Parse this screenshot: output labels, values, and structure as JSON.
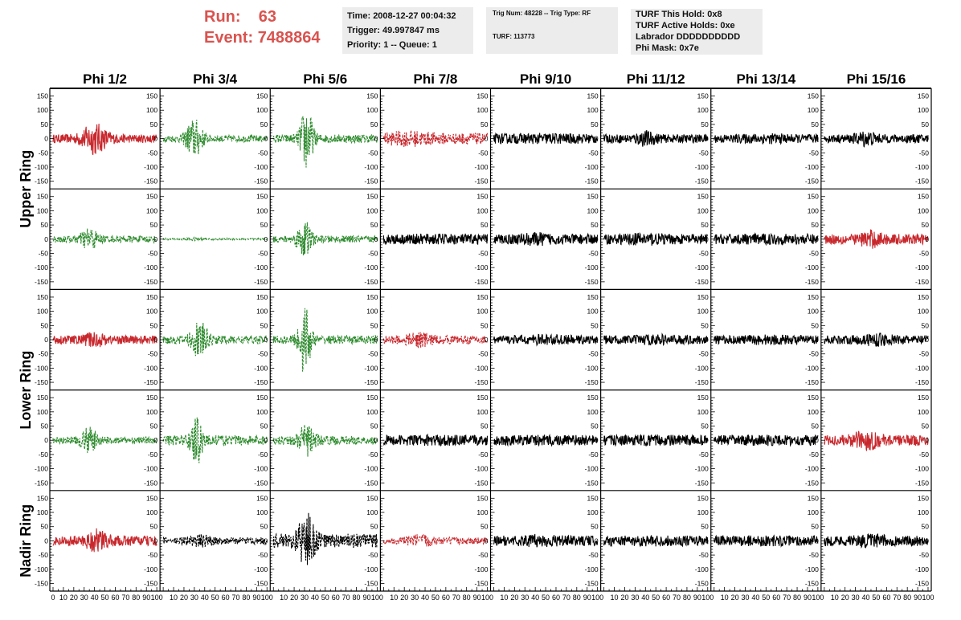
{
  "header": {
    "run_label": "Run:",
    "run_value": "63",
    "event_label": "Event:",
    "event_value": "7488864"
  },
  "info_time": {
    "time": "Time: 2008-12-27 00:04:32",
    "trigger": "Trigger: 49.997847 ms",
    "priority": "Priority: 1 -- Queue: 1"
  },
  "info_trig": {
    "trig": "Trig Num: 48228 -- Trig Type: RF",
    "turf": "TURF: 113773"
  },
  "info_turf": {
    "hold": "TURF This Hold: 0x8",
    "active": "TURF Active Holds: 0xe",
    "labrador": "Labrador DDDDDDDDDD",
    "phimask": "Phi Mask: 0x7e"
  },
  "colors": {
    "red": "#c8282d",
    "green": "#2e8b2e",
    "black": "#000000"
  },
  "chart_data": {
    "type": "line",
    "columns": [
      "Phi 1/2",
      "Phi 3/4",
      "Phi 5/6",
      "Phi 7/8",
      "Phi 9/10",
      "Phi 11/12",
      "Phi 13/14",
      "Phi 15/16"
    ],
    "row_groups": [
      "Upper Ring",
      "Lower Ring",
      "Nadir Ring"
    ],
    "xlim": [
      0,
      100
    ],
    "ylim": [
      -160,
      160
    ],
    "x_tick_labels": [
      "0",
      "10",
      "20",
      "30",
      "40",
      "50",
      "60",
      "70",
      "80",
      "90",
      "100"
    ],
    "y_tick_labels": [
      "150",
      "100",
      "50",
      "0",
      "-50",
      "-100",
      "-150"
    ],
    "grid": false,
    "panels": [
      [
        {
          "color": "red",
          "style": "solid",
          "amp": [
            15,
            60
          ],
          "center": 40,
          "width": 12
        },
        {
          "color": "green",
          "style": "dashed",
          "amp": [
            12,
            75
          ],
          "center": 30,
          "width": 8
        },
        {
          "color": "green",
          "style": "dashed",
          "amp": [
            15,
            120
          ],
          "center": 32,
          "width": 6
        },
        {
          "color": "red",
          "style": "dashed",
          "amp": [
            20,
            30
          ],
          "center": 25,
          "width": 20
        },
        {
          "color": "black",
          "style": "solid",
          "amp": [
            18,
            20
          ],
          "center": 50,
          "width": 20
        },
        {
          "color": "black",
          "style": "solid",
          "amp": [
            15,
            30
          ],
          "center": 40,
          "width": 10
        },
        {
          "color": "black",
          "style": "solid",
          "amp": [
            15,
            20
          ],
          "center": 50,
          "width": 20
        },
        {
          "color": "black",
          "style": "solid",
          "amp": [
            15,
            30
          ],
          "center": 40,
          "width": 10
        }
      ],
      [
        {
          "color": "green",
          "style": "dashed",
          "amp": [
            12,
            45
          ],
          "center": 35,
          "width": 8
        },
        {
          "color": "green",
          "style": "dashed",
          "amp": [
            3,
            6
          ],
          "center": 30,
          "width": 8
        },
        {
          "color": "green",
          "style": "dashed",
          "amp": [
            12,
            70
          ],
          "center": 30,
          "width": 7
        },
        {
          "color": "black",
          "style": "solid",
          "amp": [
            18,
            20
          ],
          "center": 50,
          "width": 20
        },
        {
          "color": "black",
          "style": "solid",
          "amp": [
            18,
            25
          ],
          "center": 40,
          "width": 15
        },
        {
          "color": "black",
          "style": "solid",
          "amp": [
            18,
            25
          ],
          "center": 40,
          "width": 15
        },
        {
          "color": "black",
          "style": "solid",
          "amp": [
            18,
            20
          ],
          "center": 50,
          "width": 20
        },
        {
          "color": "red",
          "style": "solid",
          "amp": [
            18,
            35
          ],
          "center": 45,
          "width": 10
        }
      ],
      [
        {
          "color": "red",
          "style": "solid",
          "amp": [
            15,
            30
          ],
          "center": 40,
          "width": 10
        },
        {
          "color": "green",
          "style": "dashed",
          "amp": [
            15,
            70
          ],
          "center": 35,
          "width": 8
        },
        {
          "color": "green",
          "style": "dashed",
          "amp": [
            15,
            130
          ],
          "center": 30,
          "width": 6
        },
        {
          "color": "red",
          "style": "dashed",
          "amp": [
            15,
            30
          ],
          "center": 35,
          "width": 12
        },
        {
          "color": "black",
          "style": "solid",
          "amp": [
            15,
            20
          ],
          "center": 50,
          "width": 20
        },
        {
          "color": "black",
          "style": "solid",
          "amp": [
            15,
            20
          ],
          "center": 50,
          "width": 20
        },
        {
          "color": "black",
          "style": "solid",
          "amp": [
            15,
            20
          ],
          "center": 50,
          "width": 20
        },
        {
          "color": "black",
          "style": "solid",
          "amp": [
            15,
            25
          ],
          "center": 50,
          "width": 15
        }
      ],
      [
        {
          "color": "green",
          "style": "dashed",
          "amp": [
            12,
            50
          ],
          "center": 35,
          "width": 8
        },
        {
          "color": "green",
          "style": "dashed",
          "amp": [
            18,
            95
          ],
          "center": 32,
          "width": 6
        },
        {
          "color": "green",
          "style": "dashed",
          "amp": [
            15,
            60
          ],
          "center": 32,
          "width": 8
        },
        {
          "color": "black",
          "style": "solid",
          "amp": [
            18,
            20
          ],
          "center": 50,
          "width": 20
        },
        {
          "color": "black",
          "style": "solid",
          "amp": [
            18,
            20
          ],
          "center": 50,
          "width": 20
        },
        {
          "color": "black",
          "style": "solid",
          "amp": [
            18,
            20
          ],
          "center": 50,
          "width": 20
        },
        {
          "color": "black",
          "style": "solid",
          "amp": [
            18,
            20
          ],
          "center": 50,
          "width": 20
        },
        {
          "color": "red",
          "style": "solid",
          "amp": [
            18,
            40
          ],
          "center": 40,
          "width": 12
        }
      ],
      [
        {
          "color": "red",
          "style": "solid",
          "amp": [
            18,
            45
          ],
          "center": 42,
          "width": 10
        },
        {
          "color": "black",
          "style": "dashed",
          "amp": [
            12,
            25
          ],
          "center": 35,
          "width": 12
        },
        {
          "color": "black",
          "style": "dashed",
          "amp": [
            25,
            110
          ],
          "center": 32,
          "width": 8
        },
        {
          "color": "red",
          "style": "dashed",
          "amp": [
            12,
            25
          ],
          "center": 35,
          "width": 12
        },
        {
          "color": "black",
          "style": "solid",
          "amp": [
            18,
            25
          ],
          "center": 45,
          "width": 15
        },
        {
          "color": "black",
          "style": "solid",
          "amp": [
            18,
            20
          ],
          "center": 50,
          "width": 20
        },
        {
          "color": "black",
          "style": "solid",
          "amp": [
            18,
            20
          ],
          "center": 50,
          "width": 20
        },
        {
          "color": "black",
          "style": "solid",
          "amp": [
            18,
            25
          ],
          "center": 45,
          "width": 15
        }
      ]
    ]
  }
}
